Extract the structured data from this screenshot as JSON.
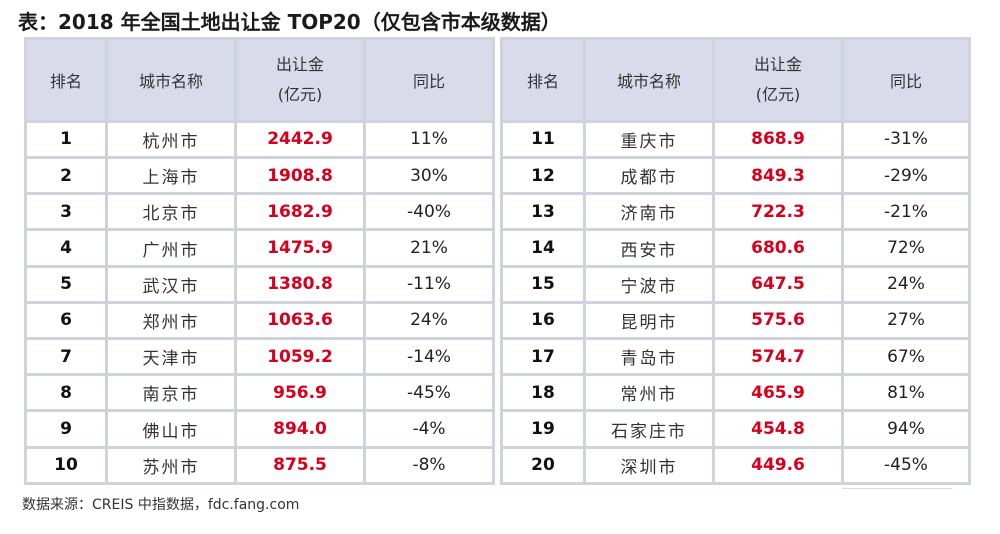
{
  "title": "表：2018 年全国土地出让金 TOP20（仅包含市本级数据）",
  "headers": {
    "rank": "排名",
    "city": "城市名称",
    "amount_line1": "出让金",
    "amount_line2": "(亿元)",
    "yoy": "同比"
  },
  "left_rows": [
    {
      "rank": "1",
      "city": "杭州市",
      "amount": "2442.9",
      "yoy": "11%"
    },
    {
      "rank": "2",
      "city": "上海市",
      "amount": "1908.8",
      "yoy": "30%"
    },
    {
      "rank": "3",
      "city": "北京市",
      "amount": "1682.9",
      "yoy": "-40%"
    },
    {
      "rank": "4",
      "city": "广州市",
      "amount": "1475.9",
      "yoy": "21%"
    },
    {
      "rank": "5",
      "city": "武汉市",
      "amount": "1380.8",
      "yoy": "-11%"
    },
    {
      "rank": "6",
      "city": "郑州市",
      "amount": "1063.6",
      "yoy": "24%"
    },
    {
      "rank": "7",
      "city": "天津市",
      "amount": "1059.2",
      "yoy": "-14%"
    },
    {
      "rank": "8",
      "city": "南京市",
      "amount": "956.9",
      "yoy": "-45%"
    },
    {
      "rank": "9",
      "city": "佛山市",
      "amount": "894.0",
      "yoy": "-4%"
    },
    {
      "rank": "10",
      "city": "苏州市",
      "amount": "875.5",
      "yoy": "-8%"
    }
  ],
  "right_rows": [
    {
      "rank": "11",
      "city": "重庆市",
      "amount": "868.9",
      "yoy": "-31%"
    },
    {
      "rank": "12",
      "city": "成都市",
      "amount": "849.3",
      "yoy": "-29%"
    },
    {
      "rank": "13",
      "city": "济南市",
      "amount": "722.3",
      "yoy": "-21%"
    },
    {
      "rank": "14",
      "city": "西安市",
      "amount": "680.6",
      "yoy": "72%"
    },
    {
      "rank": "15",
      "city": "宁波市",
      "amount": "647.5",
      "yoy": "24%"
    },
    {
      "rank": "16",
      "city": "昆明市",
      "amount": "575.6",
      "yoy": "27%"
    },
    {
      "rank": "17",
      "city": "青岛市",
      "amount": "574.7",
      "yoy": "67%"
    },
    {
      "rank": "18",
      "city": "常州市",
      "amount": "465.9",
      "yoy": "81%"
    },
    {
      "rank": "19",
      "city": "石家庄市",
      "amount": "454.8",
      "yoy": "94%"
    },
    {
      "rank": "20",
      "city": "深圳市",
      "amount": "449.6",
      "yoy": "-45%"
    }
  ],
  "source": "数据来源：CREIS 中指数据，fdc.fang.com",
  "colors": {
    "amount_text": "#d6001c",
    "header_bg": "#d9dbea",
    "grid_line": "#cfd3dc"
  },
  "icons": {
    "cursor": "hand-cursor-icon"
  }
}
